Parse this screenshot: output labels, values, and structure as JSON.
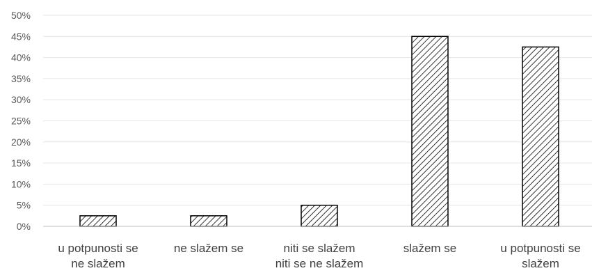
{
  "chart_data": {
    "type": "bar",
    "title": "",
    "xlabel": "",
    "ylabel": "",
    "ylim": [
      0,
      50
    ],
    "y_tick_step": 5,
    "y_tick_suffix": "%",
    "grid": true,
    "legend": "none",
    "bar_fill": "diagonal-hatch",
    "colors": {
      "bar_stroke": "#000000",
      "hatch": "#000000",
      "grid": "#e6e6e6",
      "axis": "#bfbfbf",
      "label": "#404040"
    },
    "categories": [
      [
        "u potpunosti se",
        "ne slažem"
      ],
      [
        "ne slažem se"
      ],
      [
        "niti se slažem",
        "niti se ne slažem"
      ],
      [
        "slažem se"
      ],
      [
        "u potpunosti se",
        "slažem"
      ]
    ],
    "values": [
      2.5,
      2.5,
      5,
      45,
      42.5
    ]
  }
}
